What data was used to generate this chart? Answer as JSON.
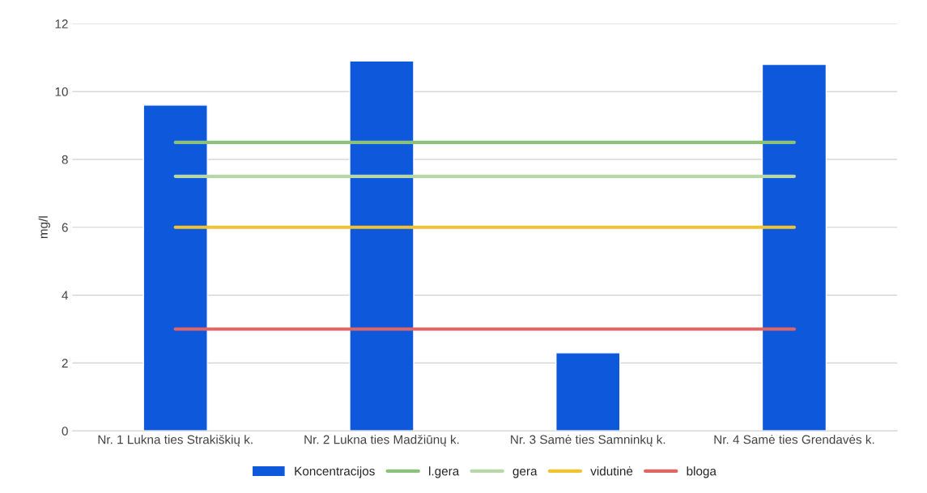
{
  "chart_data": {
    "type": "bar",
    "ylabel": "mg/l",
    "categories": [
      "Nr. 1 Lukna ties Strakiškių k.",
      "Nr. 2 Lukna ties Madžiūnų k.",
      "Nr. 3 Samė ties Samninkų k.",
      "Nr. 4 Samė ties Grendavės k."
    ],
    "series": [
      {
        "name": "Koncentracijos",
        "color": "#0e59db",
        "values": [
          9.6,
          10.9,
          2.3,
          10.8
        ]
      },
      {
        "name": "l.gera",
        "type": "line",
        "color": "#8cc17b",
        "values": [
          8.5,
          8.5,
          8.5,
          8.5
        ]
      },
      {
        "name": "gera",
        "type": "line",
        "color": "#b7d7a8",
        "values": [
          7.5,
          7.5,
          7.5,
          7.5
        ]
      },
      {
        "name": "vidutinė",
        "type": "line",
        "color": "#f1c232",
        "values": [
          6,
          6,
          6,
          6
        ]
      },
      {
        "name": "bloga",
        "type": "line",
        "color": "#e06666",
        "values": [
          3,
          3,
          3,
          3
        ]
      }
    ],
    "ylim": [
      0,
      12
    ],
    "yticks": [
      0,
      2,
      4,
      6,
      8,
      10,
      12
    ],
    "grid": "y",
    "legend": "bottom"
  }
}
